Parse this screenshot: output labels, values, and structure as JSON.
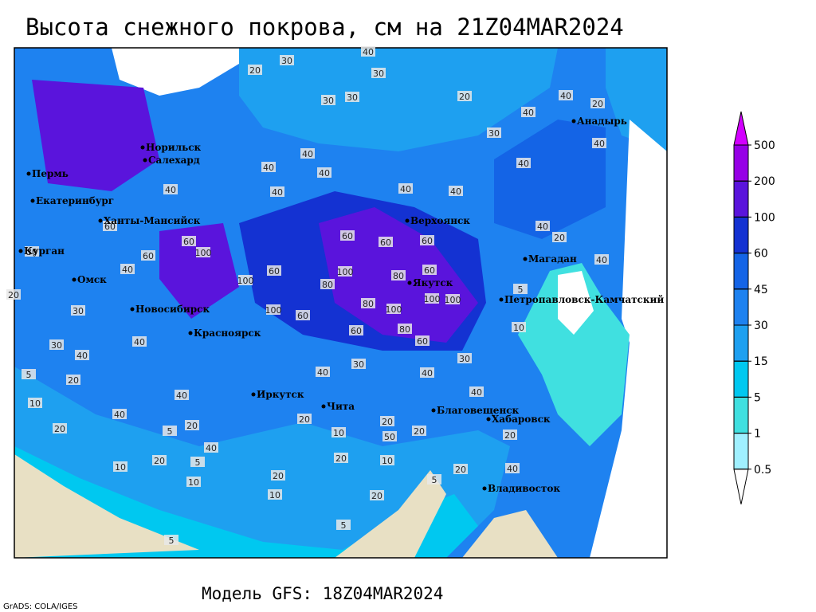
{
  "title": "Высота снежного покрова, см на 21Z04MAR2024",
  "footer": "Модель GFS: 18Z04MAR2024",
  "credit": "GrADS: COLA/IGES",
  "cities": [
    "Норильск",
    "Салехард",
    "Пермь",
    "Екатеринбург",
    "Ханты-Мансийск",
    "Курган",
    "Омск",
    "Новосибирск",
    "Красноярск",
    "Иркутск",
    "Чита",
    "Верхоянск",
    "Якутск",
    "Анадырь",
    "Магадан",
    "Петропавловск-Камчатский",
    "Благовещенск",
    "Хабаровск",
    "Владивосток"
  ],
  "contour_labels": [
    40,
    30,
    20,
    30,
    30,
    30,
    20,
    30,
    40,
    20,
    40,
    40,
    40,
    40,
    40,
    40,
    40,
    40,
    40,
    40,
    60,
    60,
    60,
    60,
    100,
    80,
    100,
    80,
    60,
    100,
    100,
    100,
    80,
    100,
    60,
    80,
    60,
    60,
    100,
    60,
    60,
    60,
    40,
    30,
    40,
    20,
    40,
    40,
    40,
    5,
    20,
    40,
    10,
    5,
    20,
    10,
    20,
    10,
    20,
    10,
    20,
    50,
    20,
    10,
    20,
    5,
    20,
    40,
    20,
    10,
    5,
    20,
    40,
    40,
    40,
    30,
    40,
    40,
    30,
    20,
    5,
    5,
    10,
    5,
    20,
    30,
    20,
    30
  ],
  "legend": {
    "levels": [
      500,
      200,
      100,
      60,
      45,
      30,
      15,
      5,
      1,
      0.5
    ],
    "colors": [
      "#d200ff",
      "#9600e6",
      "#5a14dc",
      "#1432d2",
      "#1464e6",
      "#1e82f0",
      "#1ea0f0",
      "#00c8f0",
      "#40e0e0",
      "#a0f0ff",
      "#ffffff"
    ]
  }
}
